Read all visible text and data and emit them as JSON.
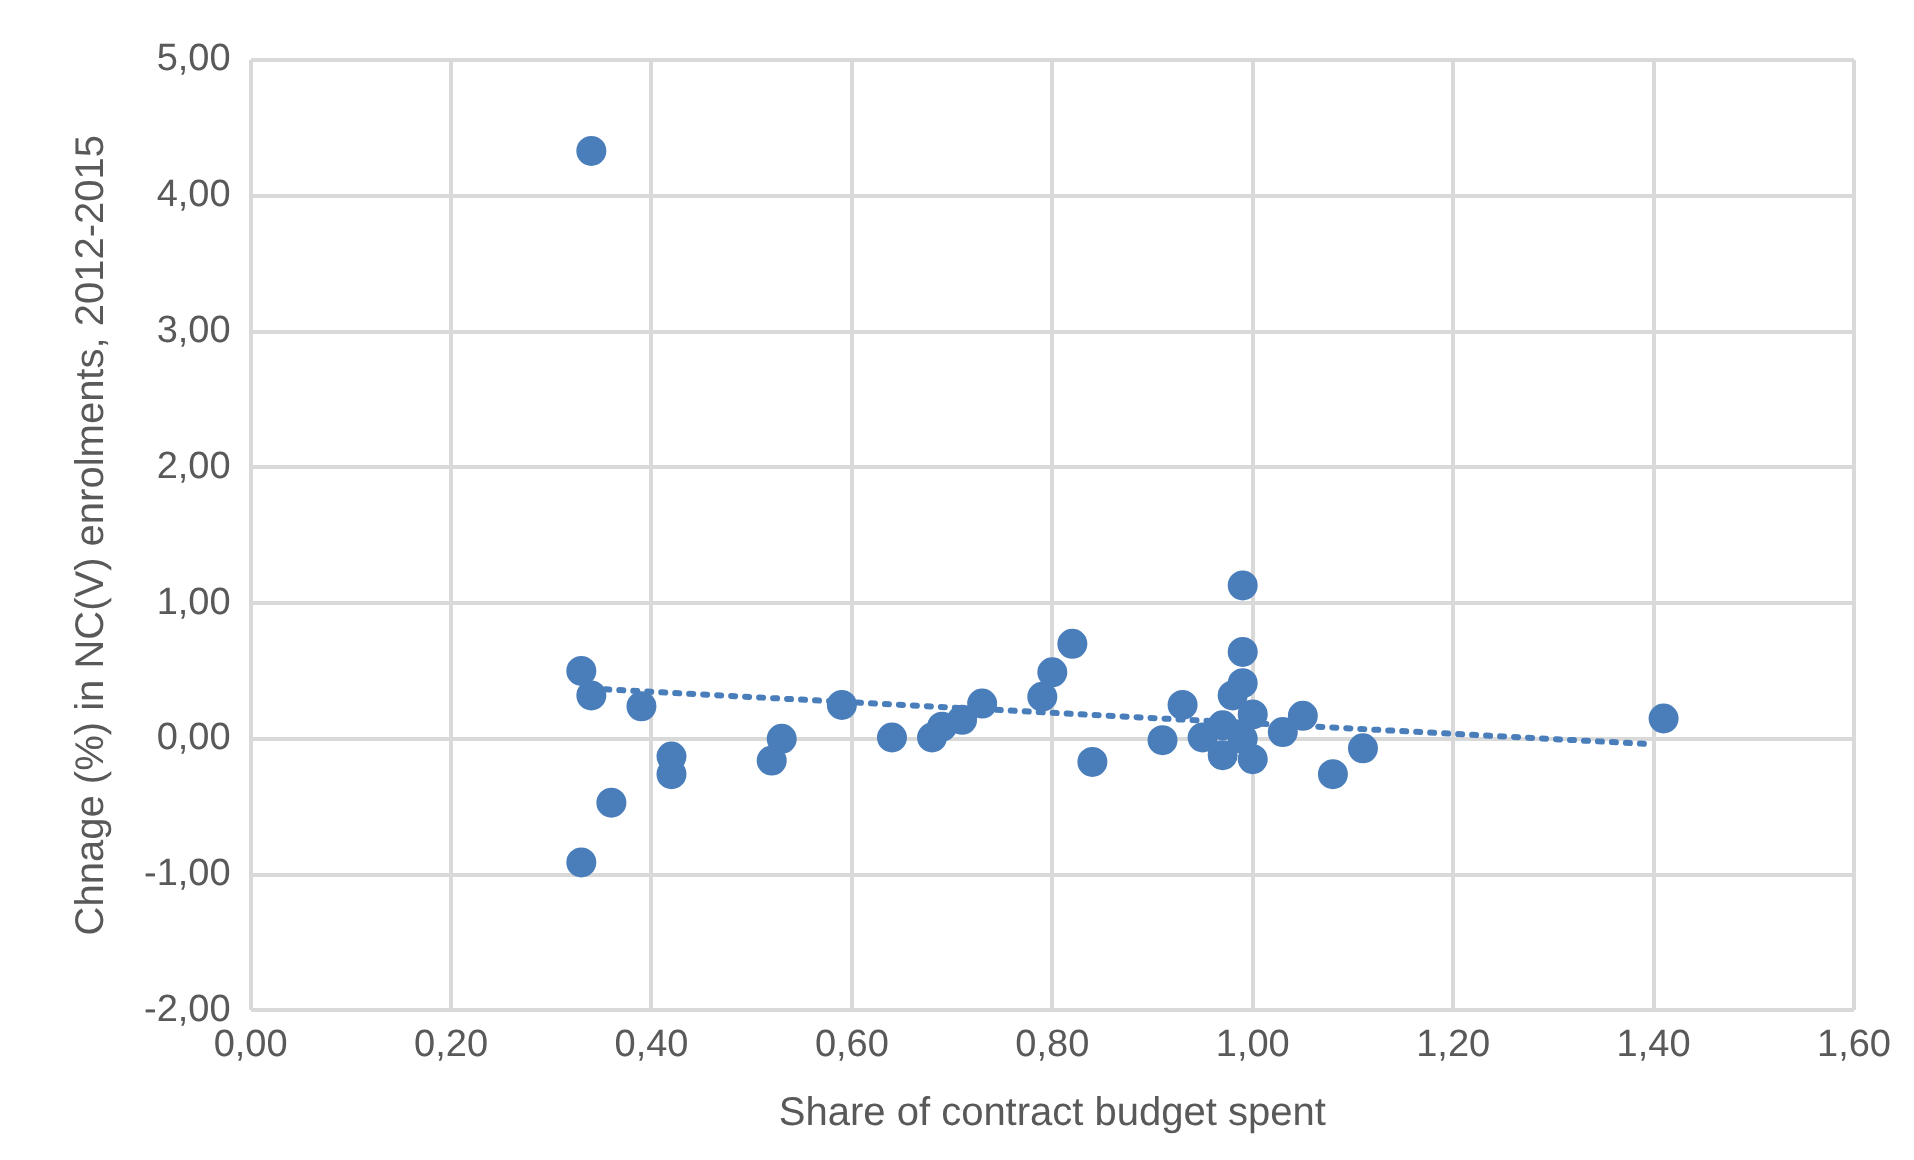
{
  "chart_data": {
    "type": "scatter",
    "xlabel": "Share of contract budget spent",
    "ylabel": "Chnage (%) in NC(V) enrolments, 2012-2015",
    "series": [
      {
        "color": "#4a7ebb",
        "marker": "circle",
        "x": [
          0.34,
          0.33,
          0.34,
          0.39,
          0.33,
          0.36,
          0.42,
          0.42,
          0.52,
          0.53,
          0.59,
          0.64,
          0.68,
          0.69,
          0.71,
          0.73,
          0.79,
          0.8,
          0.82,
          0.84,
          0.91,
          0.93,
          0.99,
          0.99,
          0.99,
          0.98,
          0.95,
          0.97,
          1.0,
          0.97,
          1.0,
          0.99,
          1.03,
          1.05,
          1.08,
          1.11,
          1.41
        ],
        "values": [
          4.33,
          0.5,
          0.32,
          0.24,
          -0.91,
          -0.47,
          -0.13,
          -0.26,
          -0.16,
          0.0,
          0.25,
          0.01,
          0.01,
          0.09,
          0.14,
          0.26,
          0.31,
          0.49,
          0.7,
          -0.17,
          -0.01,
          0.25,
          1.13,
          0.64,
          0.41,
          0.32,
          0.01,
          0.1,
          0.18,
          -0.12,
          -0.15,
          0.0,
          0.05,
          0.17,
          -0.26,
          -0.07,
          0.15
        ]
      },
      {
        "type": "line",
        "color": "#4a7ebb",
        "line_style": "dotted",
        "marker": "none",
        "x": [
          0.34,
          1.4
        ],
        "values": [
          0.37,
          -0.04
        ]
      }
    ],
    "xlim": [
      0,
      1.6
    ],
    "xticks": [
      {
        "value": 0,
        "label": "0,00"
      },
      {
        "value": 0.2,
        "label": "0,20"
      },
      {
        "value": 0.4,
        "label": "0,40"
      },
      {
        "value": 0.6,
        "label": "0,60"
      },
      {
        "value": 0.8,
        "label": "0,80"
      },
      {
        "value": 1.0,
        "label": "1,00"
      },
      {
        "value": 1.2,
        "label": "1,20"
      },
      {
        "value": 1.4,
        "label": "1,40"
      },
      {
        "value": 1.6,
        "label": "1,60"
      }
    ],
    "ylim": [
      -2,
      5
    ],
    "yticks": [
      {
        "value": -2,
        "label": "-2,00"
      },
      {
        "value": -1,
        "label": "-1,00"
      },
      {
        "value": 0,
        "label": "0,00"
      },
      {
        "value": 1,
        "label": "1,00"
      },
      {
        "value": 2,
        "label": "2,00"
      },
      {
        "value": 3,
        "label": "3,00"
      },
      {
        "value": 4,
        "label": "4,00"
      },
      {
        "value": 5,
        "label": "5,00"
      }
    ],
    "grid": true,
    "legend": false
  }
}
